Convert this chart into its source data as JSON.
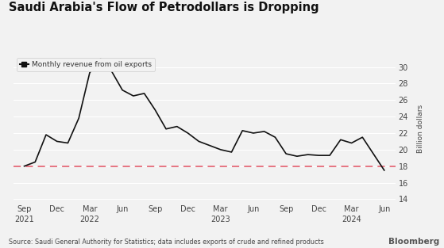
{
  "title": "Saudi Arabia's Flow of Petrodollars is Dropping",
  "legend_label": "Monthly revenue from oil exports",
  "ylabel": "Billion dollars",
  "source": "Source: Saudi General Authority for Statistics; data includes exports of crude and refined products",
  "watermark": "Bloomberg",
  "dashed_line_value": 18.0,
  "ylim": [
    13.5,
    31.5
  ],
  "yticks": [
    14,
    16,
    18,
    20,
    22,
    24,
    26,
    28,
    30
  ],
  "background_color": "#f2f2f2",
  "plot_bg_color": "#f2f2f2",
  "line_color": "#111111",
  "dashed_color": "#e05060",
  "grid_color": "#ffffff",
  "x_labels": [
    "Sep\n2021",
    "Dec",
    "Mar\n2022",
    "Jun",
    "Sep",
    "Dec",
    "Mar\n2023",
    "Jun",
    "Sep",
    "Dec",
    "Mar\n2024",
    "Jun"
  ],
  "x_positions": [
    0,
    3,
    6,
    9,
    12,
    15,
    18,
    21,
    24,
    27,
    30,
    33
  ],
  "data_y": [
    18.0,
    18.5,
    21.8,
    21.0,
    20.8,
    23.8,
    29.3,
    31.0,
    29.5,
    27.2,
    26.5,
    26.8,
    24.8,
    22.5,
    22.8,
    22.0,
    21.0,
    20.5,
    20.0,
    19.7,
    22.3,
    22.0,
    22.2,
    21.5,
    19.5,
    19.2,
    19.4,
    19.3,
    19.3,
    21.2,
    20.8,
    21.5,
    19.5,
    17.5
  ],
  "data_x": [
    0,
    1,
    2,
    3,
    4,
    5,
    6,
    7,
    8,
    9,
    10,
    11,
    12,
    13,
    14,
    15,
    16,
    17,
    18,
    19,
    20,
    21,
    22,
    23,
    24,
    25,
    26,
    27,
    28,
    29,
    30,
    31,
    32,
    33
  ]
}
